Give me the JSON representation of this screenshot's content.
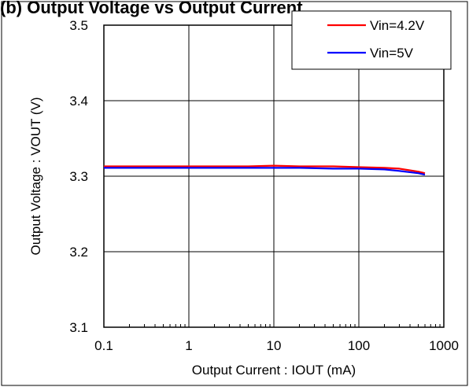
{
  "chart_data": {
    "type": "line",
    "title": "(b) Output Voltage vs Output Current",
    "xlabel": "Output Current : IOUT (mA)",
    "ylabel": "Output Voltage : VOUT (V)",
    "x_scale": "log",
    "xlim": [
      0.1,
      1000
    ],
    "ylim": [
      3.1,
      3.5
    ],
    "x_ticks": [
      "0.1",
      "1",
      "10",
      "100",
      "1000"
    ],
    "y_ticks": [
      "3.1",
      "3.2",
      "3.3",
      "3.4",
      "3.5"
    ],
    "grid": true,
    "legend_position": "top-right",
    "series": [
      {
        "name": "Vin=4.2V",
        "color": "#ff0000",
        "x": [
          0.1,
          1,
          5,
          10,
          20,
          50,
          100,
          200,
          300,
          500,
          600
        ],
        "y": [
          3.313,
          3.313,
          3.313,
          3.314,
          3.313,
          3.313,
          3.312,
          3.311,
          3.31,
          3.306,
          3.304
        ]
      },
      {
        "name": "Vin=5V",
        "color": "#0000ff",
        "x": [
          0.1,
          1,
          5,
          10,
          20,
          50,
          100,
          200,
          300,
          500,
          600
        ],
        "y": [
          3.311,
          3.311,
          3.311,
          3.311,
          3.311,
          3.31,
          3.31,
          3.309,
          3.307,
          3.304,
          3.302
        ]
      }
    ]
  }
}
